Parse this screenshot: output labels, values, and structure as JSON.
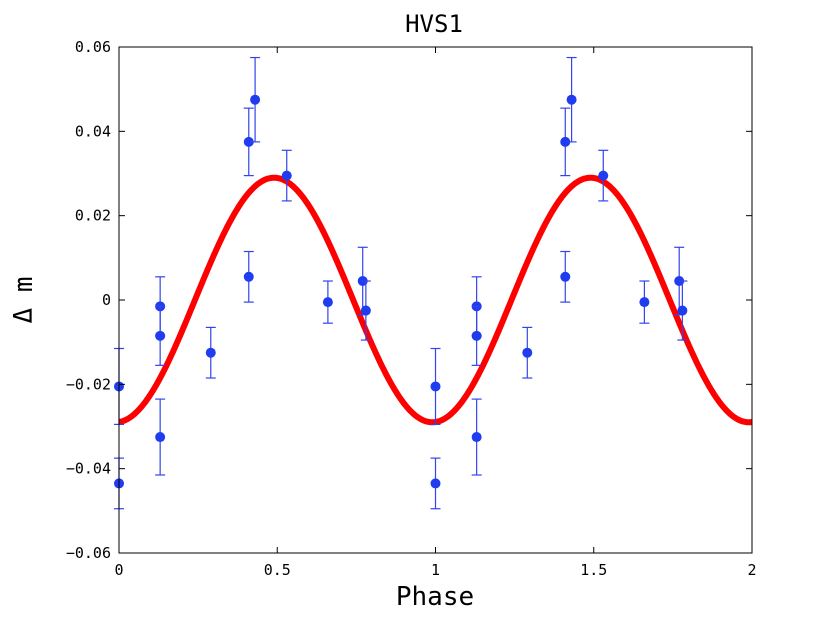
{
  "chart_data": {
    "type": "scatter",
    "title": "HVS1",
    "xlabel": "Phase",
    "ylabel": "Δ m",
    "xlim": [
      0,
      2
    ],
    "ylim": [
      -0.06,
      0.06
    ],
    "x_ticks": [
      0,
      0.5,
      1,
      1.5,
      2
    ],
    "x_tick_labels": [
      "0",
      "0.5",
      "1",
      "1.5",
      "2"
    ],
    "y_ticks": [
      -0.06,
      -0.04,
      -0.02,
      0,
      0.02,
      0.04,
      0.06
    ],
    "y_tick_labels": [
      "−0.06",
      "−0.04",
      "−0.02",
      "0",
      "0.02",
      "0.04",
      "0.06"
    ],
    "grid": false,
    "series": [
      {
        "values": [
          {
            "x": 0.0,
            "y": -0.0205,
            "err": 0.009
          },
          {
            "x": 0.0,
            "y": -0.0435,
            "err": 0.006
          },
          {
            "x": 0.13,
            "y": -0.0015,
            "err": 0.007
          },
          {
            "x": 0.13,
            "y": -0.0085,
            "err": 0.007
          },
          {
            "x": 0.13,
            "y": -0.0325,
            "err": 0.009
          },
          {
            "x": 0.29,
            "y": -0.0125,
            "err": 0.006
          },
          {
            "x": 0.41,
            "y": 0.0375,
            "err": 0.008
          },
          {
            "x": 0.41,
            "y": 0.0055,
            "err": 0.006
          },
          {
            "x": 0.43,
            "y": 0.0475,
            "err": 0.01
          },
          {
            "x": 0.53,
            "y": 0.0295,
            "err": 0.006
          },
          {
            "x": 0.66,
            "y": -0.0005,
            "err": 0.005
          },
          {
            "x": 0.77,
            "y": 0.0045,
            "err": 0.008
          },
          {
            "x": 0.78,
            "y": -0.0025,
            "err": 0.007
          },
          {
            "x": 1.0,
            "y": -0.0205,
            "err": 0.009
          },
          {
            "x": 1.0,
            "y": -0.0435,
            "err": 0.006
          },
          {
            "x": 1.13,
            "y": -0.0015,
            "err": 0.007
          },
          {
            "x": 1.13,
            "y": -0.0085,
            "err": 0.007
          },
          {
            "x": 1.13,
            "y": -0.0325,
            "err": 0.009
          },
          {
            "x": 1.29,
            "y": -0.0125,
            "err": 0.006
          },
          {
            "x": 1.41,
            "y": 0.0375,
            "err": 0.008
          },
          {
            "x": 1.41,
            "y": 0.0055,
            "err": 0.006
          },
          {
            "x": 1.43,
            "y": 0.0475,
            "err": 0.01
          },
          {
            "x": 1.53,
            "y": 0.0295,
            "err": 0.006
          },
          {
            "x": 1.66,
            "y": -0.0005,
            "err": 0.005
          },
          {
            "x": 1.77,
            "y": 0.0045,
            "err": 0.008
          },
          {
            "x": 1.78,
            "y": -0.0025,
            "err": 0.007
          }
        ],
        "color": "#1f3cf0"
      },
      {
        "type": "line",
        "model": "sinusoid",
        "amplitude": 0.029,
        "period": 1,
        "phase_of_max": 0.49,
        "offset": 0,
        "x_range": [
          0,
          2
        ],
        "color": "#ff0000"
      }
    ]
  }
}
